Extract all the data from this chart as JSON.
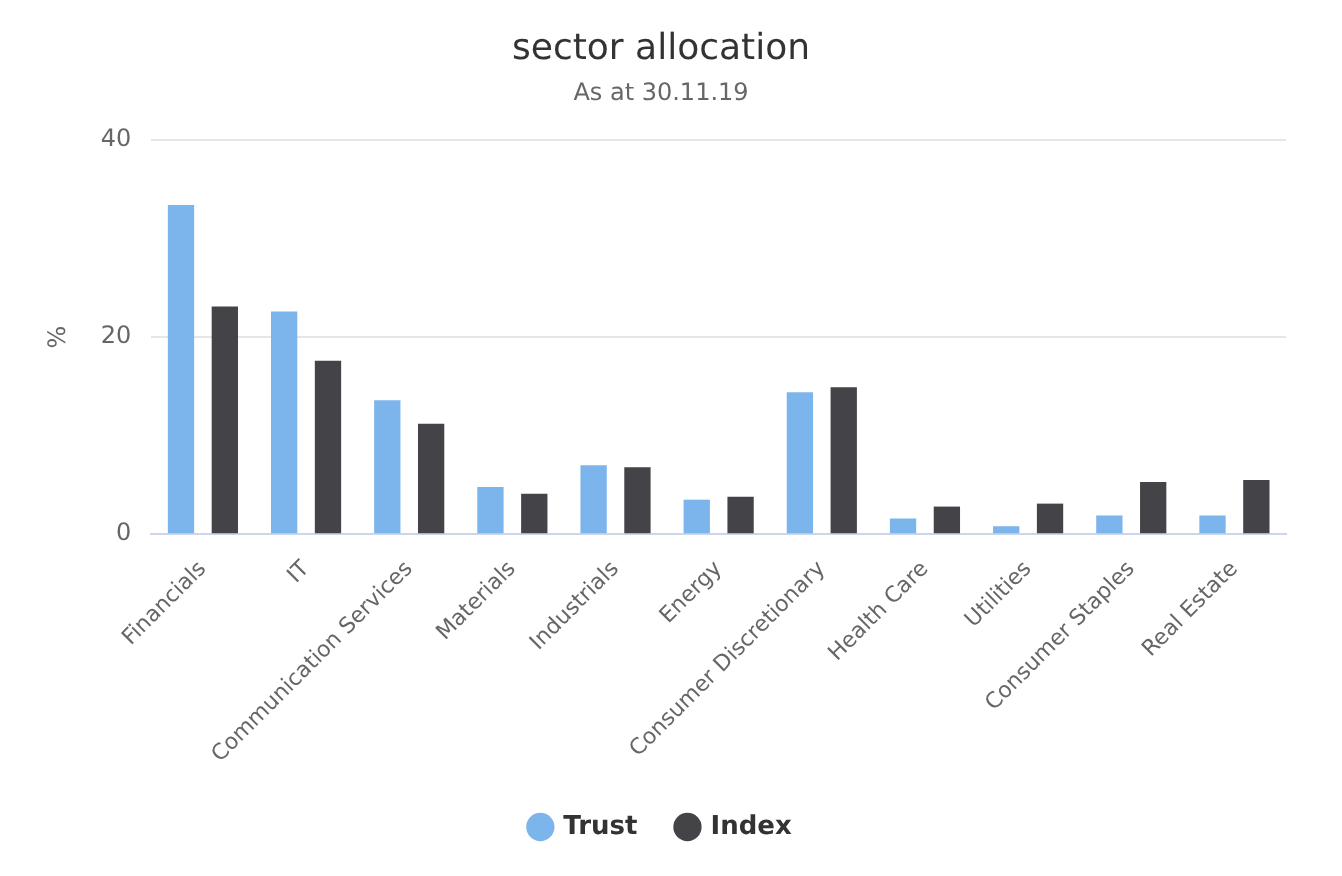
{
  "chart_data": {
    "type": "bar",
    "title": "sector allocation",
    "subtitle": "As at 30.11.19",
    "ylabel": "%",
    "categories": [
      "Financials",
      "IT",
      "Communication Services",
      "Materials",
      "Industrials",
      "Energy",
      "Consumer Discretionary",
      "Health Care",
      "Utilities",
      "Consumer Staples",
      "Real Estate"
    ],
    "series": [
      {
        "name": "Trust",
        "color": "#7cb5ec",
        "values": [
          33.4,
          22.6,
          13.6,
          4.8,
          7.0,
          3.5,
          14.4,
          1.6,
          0.8,
          1.9,
          1.9
        ]
      },
      {
        "name": "Index",
        "color": "#434348",
        "values": [
          23.1,
          17.6,
          11.2,
          4.1,
          6.8,
          3.8,
          14.9,
          2.8,
          3.1,
          5.3,
          5.5
        ]
      }
    ],
    "ylim": [
      0,
      40
    ],
    "yticks": [
      0,
      20,
      40
    ],
    "grid": "y",
    "legend": "bottom"
  }
}
